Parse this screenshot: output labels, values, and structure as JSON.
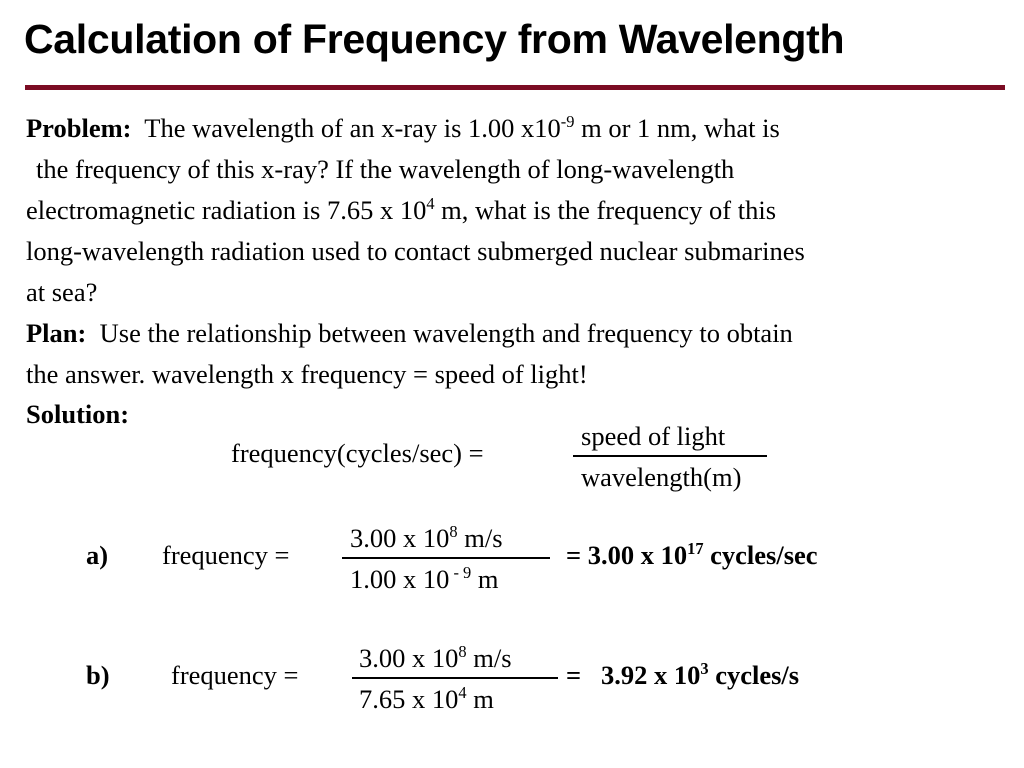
{
  "title": "Calculation of Frequency from Wavelength",
  "accent_color": "#7b0c23",
  "problem": {
    "label": "Problem:",
    "line1_text": "The wavelength of an x-ray is 1.00 x10",
    "line1_exp": "-9",
    "line1_tail": " m or 1 nm, what is",
    "line2": "the frequency of this x-ray? If the wavelength of long-wavelength",
    "line3_text": "electromagnetic radiation is 7.65 x 10",
    "line3_exp": "4",
    "line3_tail": " m, what is the frequency of this",
    "line4": "long-wavelength radiation used to contact submerged nuclear submarines",
    "line5": "at sea?"
  },
  "plan": {
    "label": "Plan:",
    "line1": "Use the relationship between wavelength and frequency to obtain",
    "line2": "the answer. wavelength x frequency = speed of light!"
  },
  "solution": {
    "label": "Solution:",
    "formula_lhs": "frequency(cycles/sec) =",
    "formula_num": "speed of light",
    "formula_den": "wavelength(m)"
  },
  "part_a": {
    "label": "a)",
    "lhs": "frequency =",
    "num_text": "3.00 x 10",
    "num_exp": "8",
    "num_tail": " m/s",
    "den_text": "1.00 x 10",
    "den_exp": " - 9",
    "den_tail": " m",
    "result_text": "= 3.00 x 10",
    "result_exp": "17",
    "result_tail": " cycles/sec"
  },
  "part_b": {
    "label": "b)",
    "lhs": "frequency =",
    "num_text": "3.00 x 10",
    "num_exp": "8",
    "num_tail": " m/s",
    "den_text": "7.65 x 10",
    "den_exp": "4",
    "den_tail": " m",
    "eq": "=",
    "result_text": "3.92 x 10",
    "result_exp": "3",
    "result_tail": " cycles/s"
  }
}
